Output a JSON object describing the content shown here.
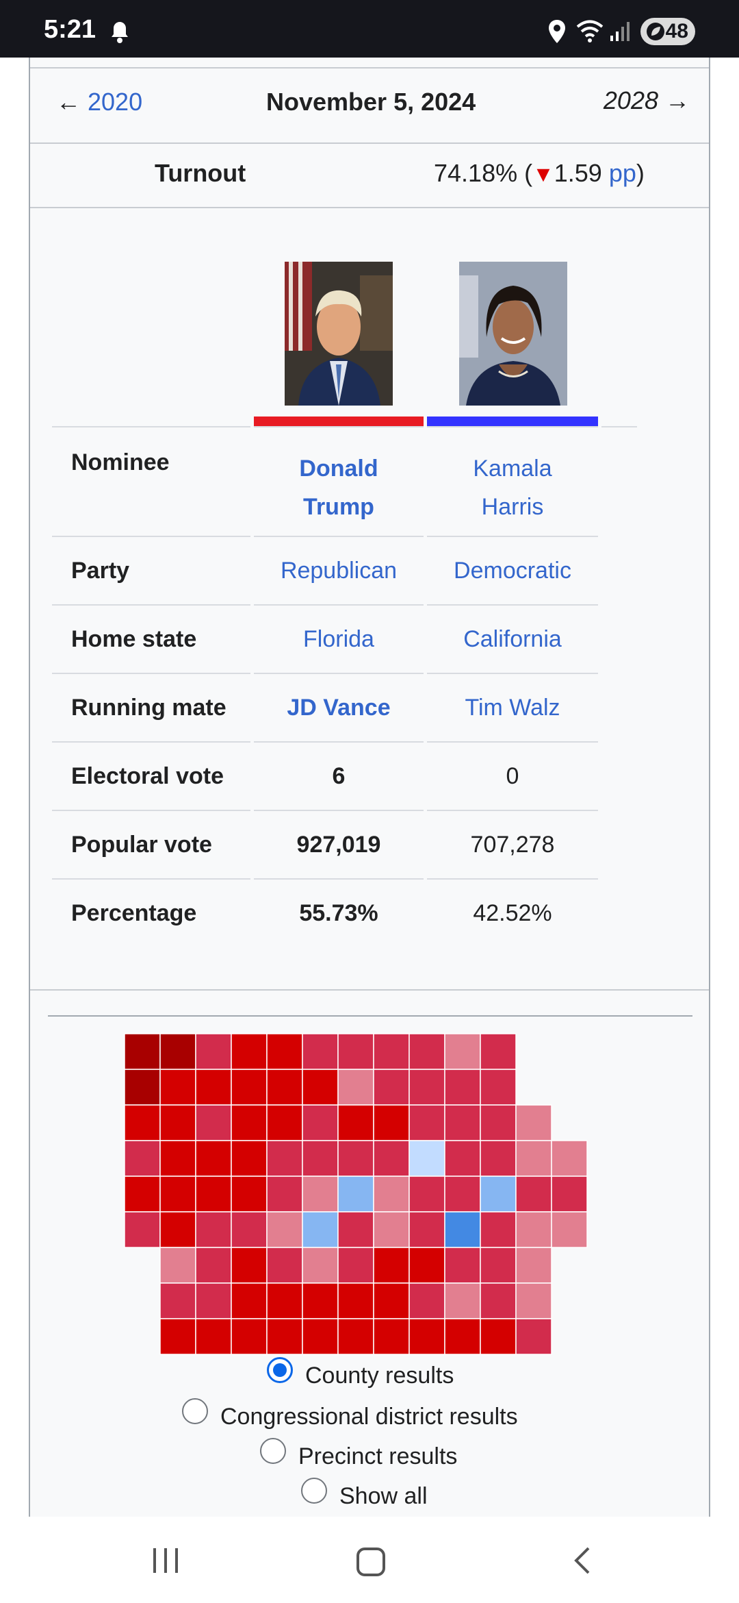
{
  "status_bar": {
    "time": "5:21",
    "battery": "48",
    "icons": [
      "bell-icon",
      "location-icon",
      "wifi-icon",
      "signal-icon",
      "battery-icon"
    ]
  },
  "election_nav": {
    "prev_arrow": "←",
    "prev_label": "2020",
    "date": "November 5, 2024",
    "next_label": "2028 →"
  },
  "turnout": {
    "label": "Turnout",
    "value": "74.18% (",
    "change_symbol": "▼",
    "change": "1.59",
    "unit_link": "pp",
    "close": ")"
  },
  "candidates": {
    "a": {
      "party_color": "#e81b23",
      "nominee_line1": "Donald",
      "nominee_line2": "Trump"
    },
    "b": {
      "party_color": "#3333ff",
      "nominee_line1": "Kamala",
      "nominee_line2": "Harris"
    }
  },
  "rows": {
    "nominee": {
      "label": "Nominee"
    },
    "party": {
      "label": "Party",
      "a": "Republican",
      "b": "Democratic"
    },
    "home_state": {
      "label": "Home state",
      "a": "Florida",
      "b": "California"
    },
    "running_mate": {
      "label": "Running mate",
      "a": "JD Vance",
      "b": "Tim Walz"
    },
    "electoral_vote": {
      "label": "Electoral vote",
      "a": "6",
      "b": "0"
    },
    "popular_vote": {
      "label": "Popular vote",
      "a": "927,019",
      "b": "707,278"
    },
    "percentage": {
      "label": "Percentage",
      "a": "55.73%",
      "b": "42.52%"
    }
  },
  "map_options": {
    "county": "County results",
    "congressional": "Congressional district results",
    "precinct": "Precinct results",
    "show_all": "Show all",
    "selected": "County results"
  },
  "map_colors": {
    "dark_red": "#a80000",
    "red": "#d40000",
    "medium_red": "#d22c4c",
    "light_red": "#e27f90",
    "light_blue": "#c2dcff",
    "medium_blue": "#86b6f2",
    "blue": "#4389e3"
  }
}
